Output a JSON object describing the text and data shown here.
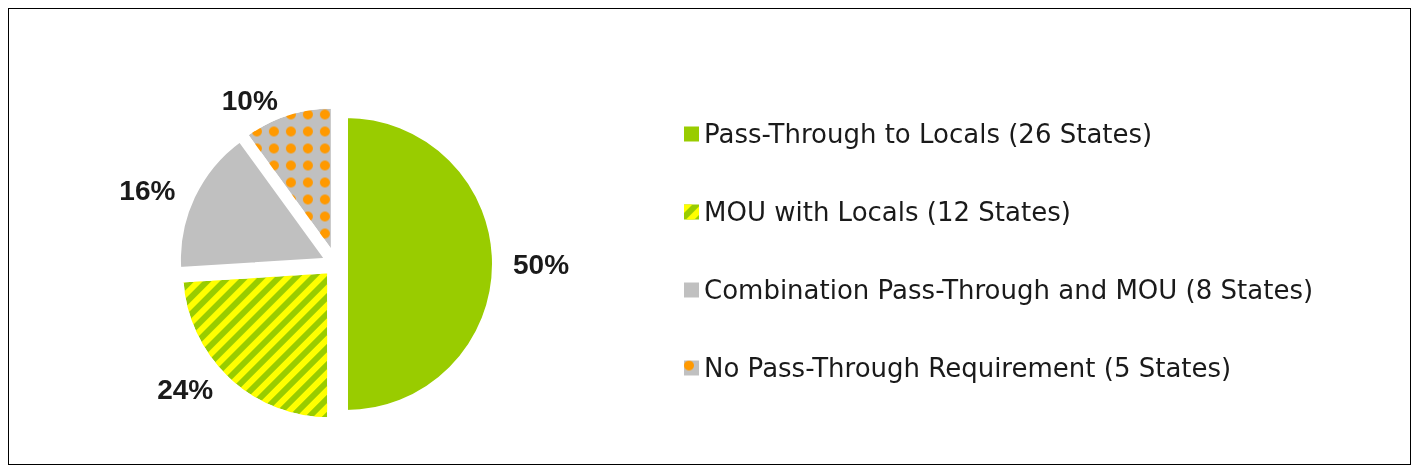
{
  "chart_data": {
    "type": "pie",
    "categories": [
      "Pass-Through to Locals (26 States)",
      "MOU with Locals (12 States)",
      "Combination Pass-Through and MOU (8 States)",
      "No Pass-Through Requirement (5 States)"
    ],
    "values": [
      50,
      24,
      16,
      10
    ],
    "value_labels": [
      "50%",
      "24%",
      "16%",
      "10%"
    ],
    "colors": [
      "#99cc00",
      "#99cc00",
      "#c0c0c0",
      "#c0c0c0"
    ],
    "legend": "right"
  }
}
